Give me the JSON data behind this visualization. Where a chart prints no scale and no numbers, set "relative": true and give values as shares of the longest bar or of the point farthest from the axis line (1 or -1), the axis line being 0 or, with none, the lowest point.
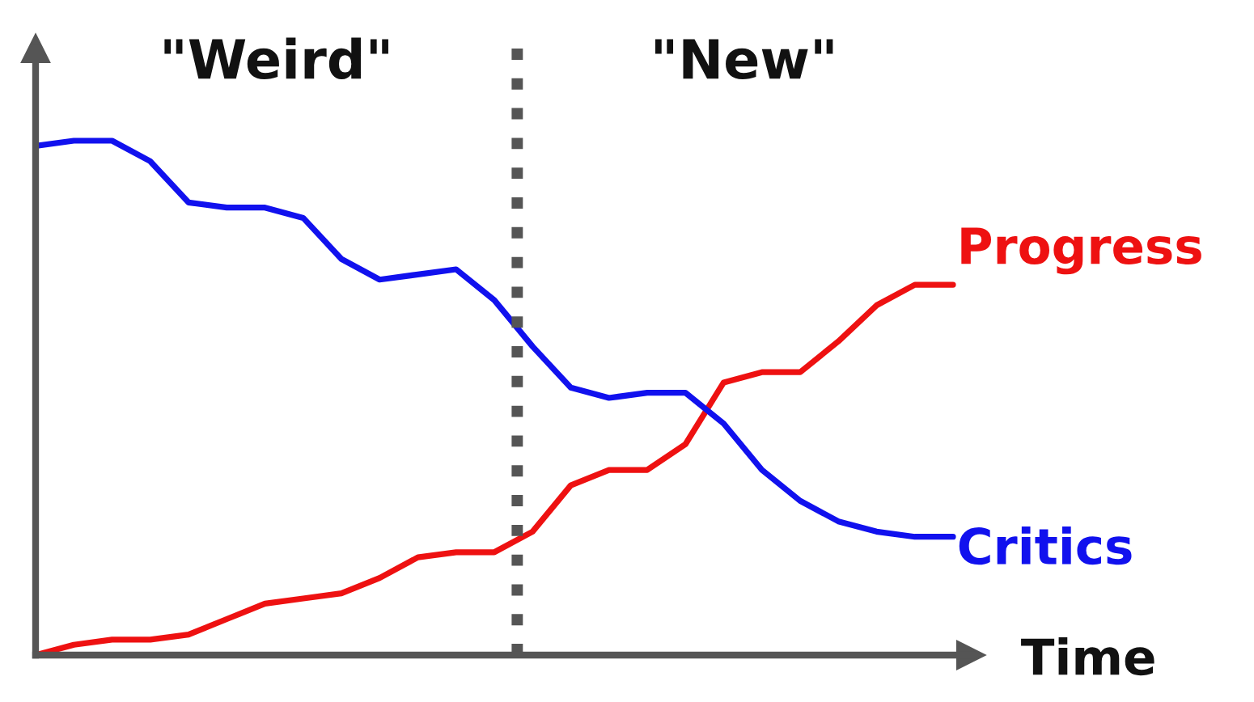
{
  "chart_data": {
    "type": "line",
    "relative": true,
    "xlabel": "Time",
    "categories": [
      null,
      null,
      null,
      null,
      null,
      null,
      null,
      null,
      null,
      null,
      null,
      null,
      null,
      null,
      null,
      null,
      null,
      null,
      null,
      null,
      null,
      null,
      null,
      null,
      null
    ],
    "series": [
      {
        "name": "Progress",
        "color": "#ee1111",
        "values": [
          0,
          0.02,
          0.03,
          0.03,
          0.04,
          0.07,
          0.1,
          0.11,
          0.12,
          0.15,
          0.19,
          0.2,
          0.2,
          0.24,
          0.33,
          0.36,
          0.36,
          0.41,
          0.53,
          0.55,
          0.55,
          0.61,
          0.68,
          0.72,
          0.72
        ]
      },
      {
        "name": "Critics",
        "color": "#1111ee",
        "values": [
          0.99,
          1.0,
          1.0,
          0.96,
          0.88,
          0.87,
          0.87,
          0.85,
          0.77,
          0.73,
          0.74,
          0.75,
          0.69,
          0.6,
          0.52,
          0.5,
          0.51,
          0.51,
          0.45,
          0.36,
          0.3,
          0.26,
          0.24,
          0.23,
          0.23
        ]
      }
    ],
    "annotations": [
      "\"Weird\"",
      "\"New\""
    ],
    "legend": false,
    "marker": "none",
    "line_style": "solid"
  }
}
